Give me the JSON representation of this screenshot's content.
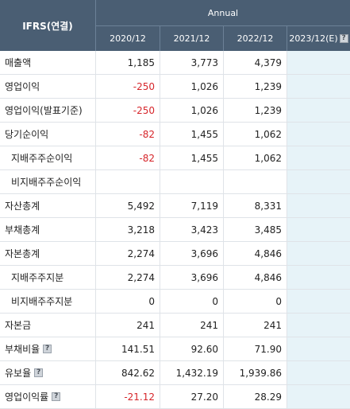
{
  "header": {
    "title": "IFRS(연결)",
    "group": "Annual",
    "years": [
      "2020/12",
      "2021/12",
      "2022/12",
      "2023/12(E)"
    ],
    "help_glyph": "?"
  },
  "rows": [
    {
      "label": "매출액",
      "values": [
        "1,185",
        "3,773",
        "4,379",
        ""
      ],
      "indent": false,
      "help": false
    },
    {
      "label": "영업이익",
      "values": [
        "-250",
        "1,026",
        "1,239",
        ""
      ],
      "indent": false,
      "help": false
    },
    {
      "label": "영업이익(발표기준)",
      "values": [
        "-250",
        "1,026",
        "1,239",
        ""
      ],
      "indent": false,
      "help": false
    },
    {
      "label": "당기순이익",
      "values": [
        "-82",
        "1,455",
        "1,062",
        ""
      ],
      "indent": false,
      "help": false
    },
    {
      "label": "지배주주순이익",
      "values": [
        "-82",
        "1,455",
        "1,062",
        ""
      ],
      "indent": true,
      "help": false
    },
    {
      "label": "비지배주주순이익",
      "values": [
        "",
        "",
        "",
        ""
      ],
      "indent": true,
      "help": false
    },
    {
      "label": "자산총계",
      "values": [
        "5,492",
        "7,119",
        "8,331",
        ""
      ],
      "indent": false,
      "help": false
    },
    {
      "label": "부채총계",
      "values": [
        "3,218",
        "3,423",
        "3,485",
        ""
      ],
      "indent": false,
      "help": false
    },
    {
      "label": "자본총계",
      "values": [
        "2,274",
        "3,696",
        "4,846",
        ""
      ],
      "indent": false,
      "help": false
    },
    {
      "label": "지배주주지분",
      "values": [
        "2,274",
        "3,696",
        "4,846",
        ""
      ],
      "indent": true,
      "help": false
    },
    {
      "label": "비지배주주지분",
      "values": [
        "0",
        "0",
        "0",
        ""
      ],
      "indent": true,
      "help": false
    },
    {
      "label": "자본금",
      "values": [
        "241",
        "241",
        "241",
        ""
      ],
      "indent": false,
      "help": false
    },
    {
      "label": "부채비율",
      "values": [
        "141.51",
        "92.60",
        "71.90",
        ""
      ],
      "indent": false,
      "help": true
    },
    {
      "label": "유보율",
      "values": [
        "842.62",
        "1,432.19",
        "1,939.86",
        ""
      ],
      "indent": false,
      "help": true
    },
    {
      "label": "영업이익률",
      "values": [
        "-21.12",
        "27.20",
        "28.29",
        ""
      ],
      "indent": false,
      "help": true
    }
  ],
  "colors": {
    "header_bg": "#4a5e73",
    "negative": "#d6262b",
    "estimate_bg": "#e7f3f8"
  }
}
